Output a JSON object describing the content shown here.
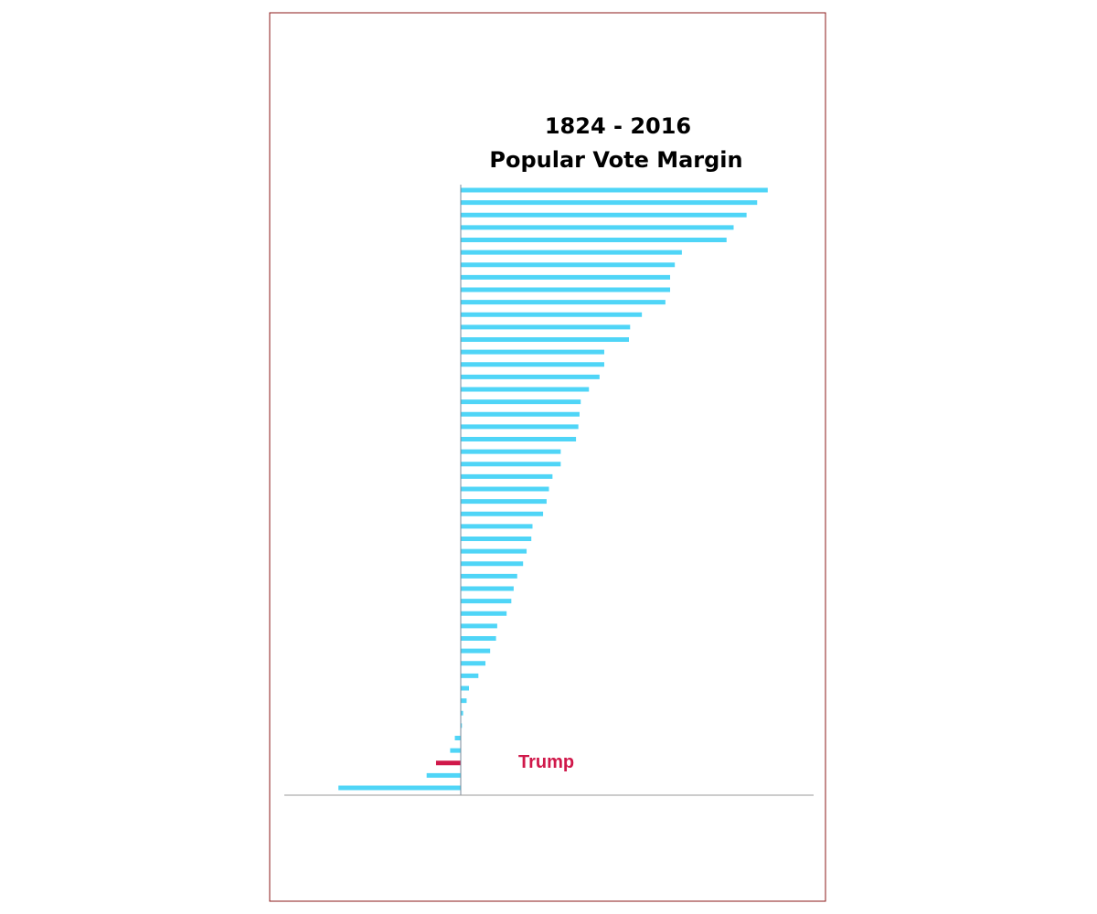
{
  "chart_data": {
    "type": "hbar",
    "title": [
      "1824 - 2016",
      "Popular Vote Margin"
    ],
    "values": [
      26.1,
      25.2,
      24.3,
      23.2,
      22.6,
      18.8,
      18.2,
      17.8,
      17.8,
      17.4,
      15.4,
      14.4,
      14.3,
      12.2,
      12.2,
      11.8,
      10.9,
      10.2,
      10.1,
      10.0,
      9.8,
      8.5,
      8.5,
      7.8,
      7.5,
      7.3,
      7.0,
      6.1,
      6.0,
      5.6,
      5.3,
      4.8,
      4.5,
      4.3,
      3.9,
      3.1,
      3.0,
      2.5,
      2.1,
      1.5,
      0.7,
      0.5,
      0.2,
      0.1,
      -0.5,
      -0.9,
      -2.1,
      -2.9,
      -10.4
    ],
    "color": "#4fd5f7",
    "annotations": [
      {
        "text": "Trump",
        "index": 46,
        "color": "#d0184a"
      }
    ],
    "xlim": [
      -15,
      30
    ]
  }
}
